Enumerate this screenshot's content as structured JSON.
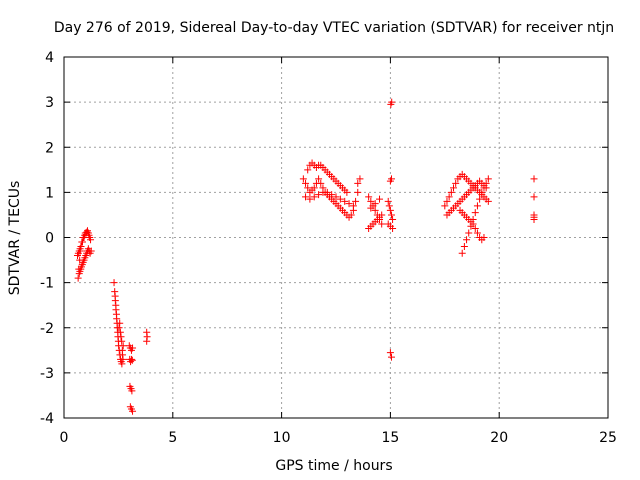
{
  "chart_data": {
    "type": "scatter",
    "title": "Day 276 of 2019, Sidereal Day-to-day VTEC variation (SDTVAR) for receiver ntjn",
    "xlabel": "GPS time / hours",
    "ylabel": "SDTVAR / TECUs",
    "xlim": [
      0,
      25
    ],
    "ylim": [
      -4,
      4
    ],
    "xticks": [
      0,
      5,
      10,
      15,
      20,
      25
    ],
    "yticks": [
      -4,
      -3,
      -2,
      -1,
      0,
      1,
      2,
      3,
      4
    ],
    "grid": true,
    "marker": "+",
    "color": "#ff0000",
    "series": [
      {
        "name": "SDTVAR",
        "x": [
          0.65,
          0.68,
          0.72,
          0.75,
          0.78,
          0.82,
          0.85,
          0.88,
          0.92,
          0.95,
          0.98,
          1.02,
          1.05,
          1.08,
          1.12,
          1.15,
          1.18,
          1.22,
          0.7,
          0.73,
          0.77,
          0.8,
          0.84,
          0.88,
          0.92,
          0.96,
          1.0,
          1.04,
          1.08,
          1.12,
          1.16,
          1.2,
          1.25,
          0.62,
          0.66,
          0.7,
          0.74,
          0.78,
          2.3,
          2.33,
          2.36,
          2.39,
          2.42,
          2.45,
          2.48,
          2.51,
          2.54,
          2.57,
          2.6,
          2.63,
          2.66,
          2.69,
          2.72,
          2.35,
          2.38,
          2.41,
          2.44,
          2.47,
          2.5,
          2.53,
          2.56,
          2.59,
          2.62,
          2.65,
          2.68,
          2.71,
          3.0,
          3.05,
          3.1,
          3.15,
          3.02,
          3.06,
          3.1,
          3.14,
          3.03,
          3.08,
          3.12,
          3.05,
          3.1,
          3.15,
          3.8,
          3.82,
          3.8,
          11.0,
          11.1,
          11.2,
          11.3,
          11.4,
          11.5,
          11.6,
          11.7,
          11.8,
          11.9,
          12.0,
          12.1,
          12.2,
          12.3,
          12.4,
          12.5,
          12.6,
          12.7,
          12.8,
          12.9,
          13.0,
          13.1,
          13.2,
          13.3,
          13.4,
          13.5,
          11.2,
          11.3,
          11.4,
          11.5,
          11.6,
          11.7,
          11.8,
          11.9,
          12.0,
          12.1,
          12.2,
          12.3,
          12.4,
          12.5,
          12.6,
          12.7,
          12.8,
          12.9,
          13.0,
          11.1,
          11.3,
          11.5,
          11.7,
          11.9,
          12.1,
          12.3,
          12.5,
          12.7,
          12.9,
          13.1,
          13.3,
          13.5,
          13.6,
          14.0,
          14.1,
          14.2,
          14.3,
          14.4,
          14.5,
          14.6,
          14.0,
          14.1,
          14.2,
          14.3,
          14.4,
          14.5,
          14.6,
          14.1,
          14.3,
          14.5,
          14.9,
          14.95,
          15.0,
          15.05,
          15.1,
          14.9,
          15.0,
          15.1,
          15.0,
          15.05,
          15.0,
          15.05,
          15.02,
          15.06,
          17.5,
          17.6,
          17.7,
          17.8,
          17.9,
          18.0,
          18.1,
          18.2,
          18.3,
          18.4,
          18.5,
          18.6,
          18.7,
          18.8,
          18.9,
          19.0,
          19.1,
          19.2,
          19.3,
          19.4,
          19.5,
          17.6,
          17.7,
          17.8,
          17.9,
          18.0,
          18.1,
          18.2,
          18.3,
          18.4,
          18.5,
          18.6,
          18.7,
          18.8,
          18.9,
          19.0,
          19.1,
          19.2,
          19.3,
          19.4,
          18.3,
          18.4,
          18.5,
          18.6,
          18.7,
          18.8,
          18.9,
          19.0,
          19.1,
          19.2,
          19.3,
          19.4,
          19.5,
          18.2,
          18.3,
          18.4,
          18.5,
          18.6,
          18.7,
          18.8,
          18.9,
          19.0,
          19.1,
          19.2,
          19.3,
          21.6,
          21.6,
          21.6,
          21.6,
          21.6
        ],
        "y": [
          -0.9,
          -0.7,
          -0.5,
          -0.3,
          -0.2,
          -0.1,
          -0.1,
          0.0,
          0.0,
          0.05,
          0.1,
          0.1,
          0.12,
          0.15,
          0.1,
          0.05,
          0.0,
          -0.05,
          -0.8,
          -0.75,
          -0.7,
          -0.65,
          -0.6,
          -0.55,
          -0.5,
          -0.45,
          -0.4,
          -0.35,
          -0.3,
          -0.25,
          -0.3,
          -0.35,
          -0.3,
          -0.4,
          -0.35,
          -0.3,
          -0.25,
          -0.2,
          -1.0,
          -1.2,
          -1.4,
          -1.6,
          -1.8,
          -2.0,
          -2.2,
          -2.4,
          -2.5,
          -2.6,
          -2.7,
          -2.75,
          -2.8,
          -2.6,
          -2.4,
          -1.3,
          -1.5,
          -1.7,
          -1.9,
          -2.1,
          -2.3,
          -2.0,
          -1.9,
          -2.1,
          -2.2,
          -2.3,
          -2.5,
          -2.7,
          -2.4,
          -2.45,
          -2.5,
          -2.45,
          -2.7,
          -2.75,
          -2.7,
          -2.72,
          -3.3,
          -3.35,
          -3.4,
          -3.75,
          -3.8,
          -3.85,
          -2.1,
          -2.2,
          -2.3,
          1.3,
          1.2,
          1.1,
          1.0,
          1.05,
          1.1,
          1.2,
          1.3,
          1.2,
          1.1,
          1.0,
          0.95,
          0.9,
          0.85,
          0.8,
          0.75,
          0.7,
          0.65,
          0.6,
          0.55,
          0.5,
          0.45,
          0.5,
          0.6,
          0.8,
          1.0,
          1.5,
          1.6,
          1.65,
          1.6,
          1.55,
          1.6,
          1.6,
          1.55,
          1.5,
          1.45,
          1.4,
          1.35,
          1.3,
          1.25,
          1.2,
          1.15,
          1.1,
          1.05,
          1.0,
          0.9,
          0.85,
          0.9,
          0.95,
          1.0,
          1.0,
          0.95,
          0.9,
          0.85,
          0.8,
          0.75,
          0.7,
          1.2,
          1.3,
          0.9,
          0.8,
          0.7,
          0.6,
          0.5,
          0.4,
          0.3,
          0.2,
          0.25,
          0.3,
          0.35,
          0.4,
          0.45,
          0.5,
          0.65,
          0.75,
          0.85,
          0.8,
          0.7,
          0.6,
          0.5,
          0.4,
          0.3,
          0.25,
          0.2,
          1.25,
          1.3,
          -2.55,
          -2.65,
          2.95,
          3.0,
          0.7,
          0.8,
          0.9,
          1.0,
          1.1,
          1.2,
          1.3,
          1.35,
          1.4,
          1.35,
          1.3,
          1.25,
          1.2,
          1.15,
          1.1,
          1.05,
          1.0,
          0.95,
          0.9,
          0.85,
          0.8,
          0.5,
          0.55,
          0.6,
          0.65,
          0.7,
          0.75,
          0.8,
          0.85,
          0.9,
          0.95,
          1.0,
          1.05,
          1.1,
          1.15,
          1.2,
          1.25,
          1.2,
          1.15,
          1.1,
          -0.35,
          -0.2,
          -0.05,
          0.1,
          0.25,
          0.4,
          0.55,
          0.7,
          0.85,
          1.0,
          1.1,
          1.2,
          1.3,
          0.6,
          0.55,
          0.5,
          0.45,
          0.4,
          0.35,
          0.3,
          0.2,
          0.1,
          0.0,
          -0.05,
          0.0,
          1.3,
          0.9,
          0.5,
          0.45,
          0.4
        ]
      }
    ]
  }
}
